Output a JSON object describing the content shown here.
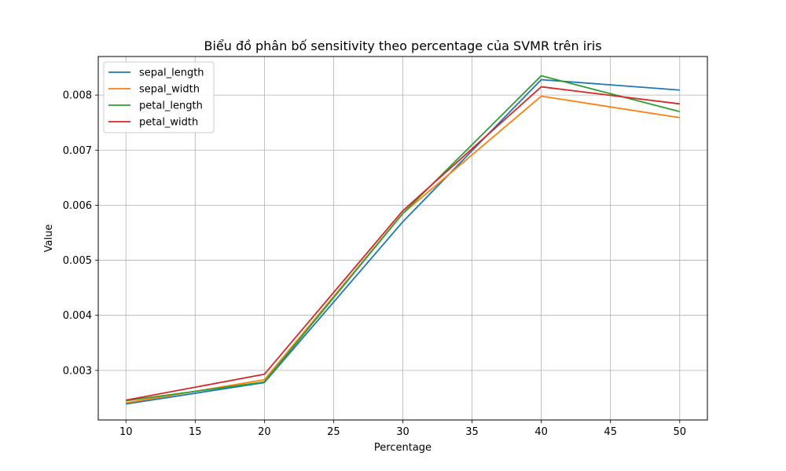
{
  "chart_data": {
    "type": "line",
    "title": "Biểu đồ phân bố sensitivity theo percentage của SVMR trên iris",
    "xlabel": "Percentage",
    "ylabel": "Value",
    "x": [
      10,
      20,
      30,
      40,
      50
    ],
    "xlim": [
      8,
      52
    ],
    "ylim": [
      0.0021,
      0.0087
    ],
    "xticks": [
      10,
      15,
      20,
      25,
      30,
      35,
      40,
      45,
      50
    ],
    "yticks": [
      0.003,
      0.004,
      0.005,
      0.006,
      0.007,
      0.008
    ],
    "grid": true,
    "legend_position": "top-left",
    "series": [
      {
        "name": "sepal_length",
        "color": "#1f77b4",
        "values": [
          0.00239,
          0.00278,
          0.0057,
          0.00828,
          0.00809
        ]
      },
      {
        "name": "sepal_width",
        "color": "#ff7f0e",
        "values": [
          0.00241,
          0.00283,
          0.00585,
          0.00798,
          0.00759
        ]
      },
      {
        "name": "petal_length",
        "color": "#2ca02c",
        "values": [
          0.00245,
          0.00279,
          0.00585,
          0.00835,
          0.0077
        ]
      },
      {
        "name": "petal_width",
        "color": "#d62728",
        "values": [
          0.00246,
          0.00293,
          0.0059,
          0.00815,
          0.00784
        ]
      }
    ]
  }
}
